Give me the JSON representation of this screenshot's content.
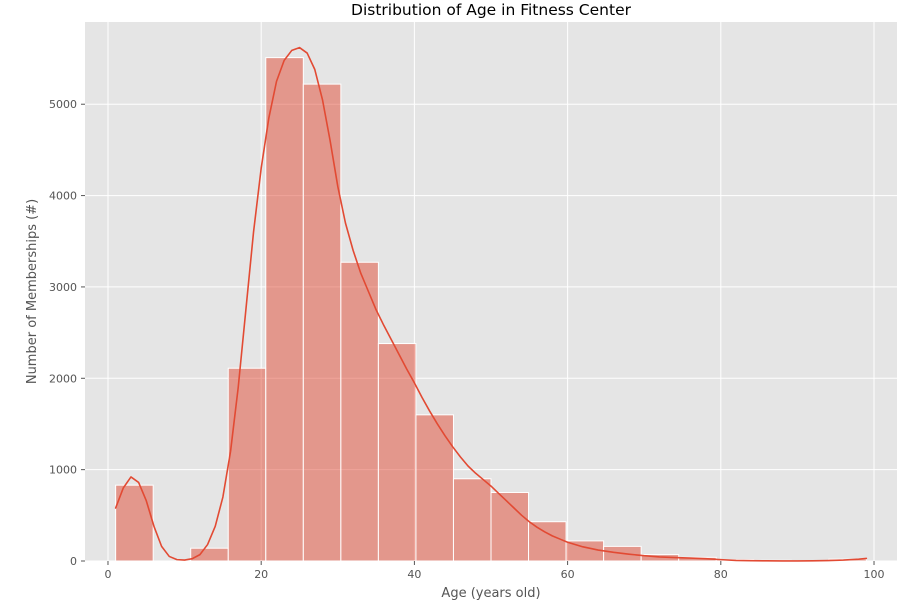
{
  "chart_data": {
    "type": "histogram",
    "title": "Distribution of Age in Fitness Center",
    "xlabel": "Age (years old)",
    "ylabel": "Number of Memberships (#)",
    "xlim": [
      -3,
      103
    ],
    "ylim": [
      0,
      5900
    ],
    "x_ticks": [
      0,
      20,
      40,
      60,
      80,
      100
    ],
    "y_ticks": [
      0,
      1000,
      2000,
      3000,
      4000,
      5000
    ],
    "grid": true,
    "colors": {
      "plot_background": "#e5e5e5",
      "grid": "#ffffff",
      "bar_fill": "#e24a33",
      "bar_opacity": 0.5,
      "bar_edge": "#ffffff",
      "kde_line": "#e24a33"
    },
    "bins": [
      {
        "x0": 1.0,
        "x1": 5.9,
        "count": 830
      },
      {
        "x0": 5.9,
        "x1": 10.8,
        "count": 0
      },
      {
        "x0": 10.8,
        "x1": 15.7,
        "count": 140
      },
      {
        "x0": 15.7,
        "x1": 20.6,
        "count": 2110
      },
      {
        "x0": 20.6,
        "x1": 25.5,
        "count": 5510
      },
      {
        "x0": 25.5,
        "x1": 30.4,
        "count": 5220
      },
      {
        "x0": 30.4,
        "x1": 35.3,
        "count": 3270
      },
      {
        "x0": 35.3,
        "x1": 40.2,
        "count": 2380
      },
      {
        "x0": 40.2,
        "x1": 45.1,
        "count": 1600
      },
      {
        "x0": 45.1,
        "x1": 50.0,
        "count": 900
      },
      {
        "x0": 50.0,
        "x1": 54.9,
        "count": 750
      },
      {
        "x0": 54.9,
        "x1": 59.8,
        "count": 430
      },
      {
        "x0": 59.8,
        "x1": 64.7,
        "count": 220
      },
      {
        "x0": 64.7,
        "x1": 69.6,
        "count": 160
      },
      {
        "x0": 69.6,
        "x1": 74.5,
        "count": 70
      },
      {
        "x0": 74.5,
        "x1": 79.4,
        "count": 40
      },
      {
        "x0": 79.4,
        "x1": 84.3,
        "count": 15
      },
      {
        "x0": 84.3,
        "x1": 89.2,
        "count": 8
      },
      {
        "x0": 89.2,
        "x1": 94.1,
        "count": 5
      },
      {
        "x0": 94.1,
        "x1": 99.0,
        "count": 20
      }
    ],
    "kde": [
      [
        1,
        580
      ],
      [
        2,
        800
      ],
      [
        3,
        920
      ],
      [
        4,
        860
      ],
      [
        5,
        660
      ],
      [
        6,
        380
      ],
      [
        7,
        160
      ],
      [
        8,
        50
      ],
      [
        9,
        15
      ],
      [
        10,
        10
      ],
      [
        11,
        25
      ],
      [
        12,
        70
      ],
      [
        13,
        180
      ],
      [
        14,
        380
      ],
      [
        15,
        700
      ],
      [
        16,
        1200
      ],
      [
        17,
        1900
      ],
      [
        18,
        2750
      ],
      [
        19,
        3600
      ],
      [
        20,
        4300
      ],
      [
        21,
        4850
      ],
      [
        22,
        5250
      ],
      [
        23,
        5480
      ],
      [
        24,
        5590
      ],
      [
        25,
        5620
      ],
      [
        26,
        5560
      ],
      [
        27,
        5380
      ],
      [
        28,
        5050
      ],
      [
        29,
        4600
      ],
      [
        30,
        4100
      ],
      [
        31,
        3700
      ],
      [
        32,
        3400
      ],
      [
        33,
        3150
      ],
      [
        34,
        2950
      ],
      [
        35,
        2750
      ],
      [
        36,
        2580
      ],
      [
        37,
        2420
      ],
      [
        38,
        2260
      ],
      [
        39,
        2100
      ],
      [
        40,
        1950
      ],
      [
        41,
        1790
      ],
      [
        42,
        1640
      ],
      [
        43,
        1500
      ],
      [
        44,
        1370
      ],
      [
        45,
        1250
      ],
      [
        46,
        1140
      ],
      [
        47,
        1040
      ],
      [
        48,
        960
      ],
      [
        49,
        890
      ],
      [
        50,
        820
      ],
      [
        51,
        740
      ],
      [
        52,
        660
      ],
      [
        53,
        580
      ],
      [
        54,
        500
      ],
      [
        55,
        430
      ],
      [
        56,
        370
      ],
      [
        57,
        320
      ],
      [
        58,
        275
      ],
      [
        59,
        240
      ],
      [
        60,
        205
      ],
      [
        62,
        155
      ],
      [
        64,
        120
      ],
      [
        66,
        95
      ],
      [
        68,
        75
      ],
      [
        70,
        58
      ],
      [
        72,
        45
      ],
      [
        74,
        38
      ],
      [
        76,
        32
      ],
      [
        78,
        25
      ],
      [
        80,
        15
      ],
      [
        82,
        6
      ],
      [
        84,
        3
      ],
      [
        86,
        2
      ],
      [
        88,
        1
      ],
      [
        90,
        1
      ],
      [
        92,
        2
      ],
      [
        94,
        5
      ],
      [
        96,
        10
      ],
      [
        98,
        20
      ],
      [
        99,
        28
      ]
    ]
  }
}
